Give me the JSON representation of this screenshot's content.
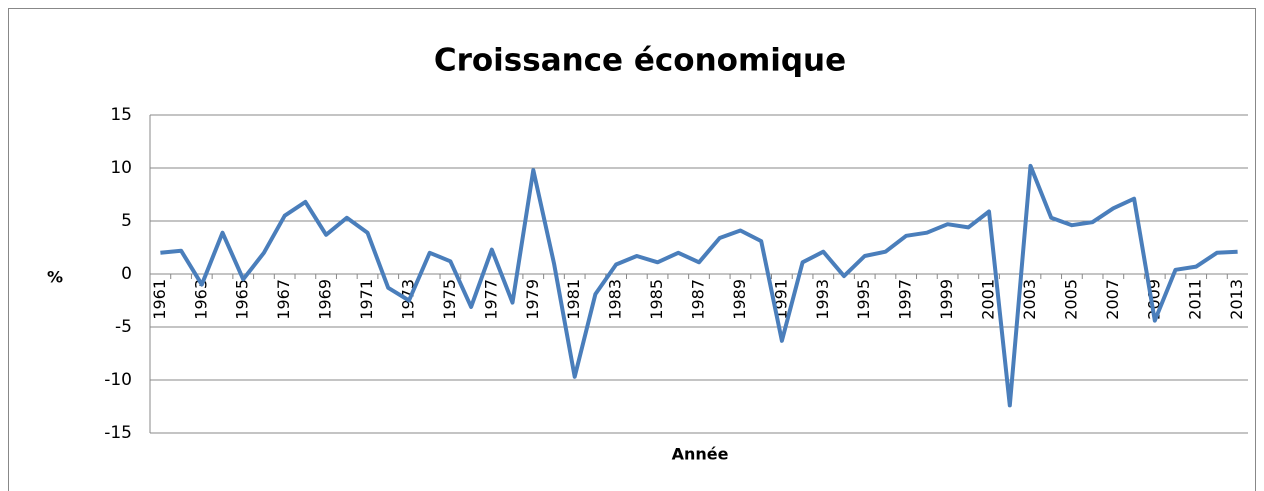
{
  "chart_data": {
    "type": "line",
    "title": "Croissance économique",
    "x_label": "Année",
    "y_label": "%",
    "categories": [
      "1961",
      null,
      "1963",
      null,
      "1965",
      null,
      "1967",
      null,
      "1969",
      null,
      "1971",
      null,
      "1973",
      null,
      "1975",
      null,
      "1977",
      null,
      "1979",
      null,
      "1981",
      null,
      "1983",
      null,
      "1985",
      null,
      "1987",
      null,
      "1989",
      null,
      "1991",
      null,
      "1993",
      null,
      "1995",
      null,
      "1997",
      null,
      "1999",
      null,
      "2001",
      null,
      "2003",
      null,
      "2005",
      null,
      "2007",
      null,
      "2009",
      null,
      "2011",
      null,
      "2013"
    ],
    "values": [
      2,
      2.2,
      -1,
      3.9,
      -0.5,
      2,
      5.5,
      6.8,
      3.7,
      5.3,
      3.9,
      -1.3,
      -2.5,
      2,
      1.2,
      -3.1,
      2.3,
      -2.7,
      9.8,
      1,
      -9.7,
      -1.9,
      0.9,
      1.7,
      1.1,
      2,
      1.1,
      3.4,
      4.1,
      3.1,
      -6.3,
      1.1,
      2.1,
      -0.2,
      1.7,
      2.1,
      3.6,
      3.9,
      4.7,
      4.4,
      5.9,
      -12.4,
      10.2,
      5.3,
      4.6,
      4.9,
      6.2,
      7.1,
      -4.4,
      0.4,
      0.7,
      2,
      2.1
    ],
    "color": "#4a7ebb",
    "ylim": [
      -15,
      15
    ],
    "yticks": [
      -15,
      -10,
      -5,
      0,
      5,
      10,
      15
    ],
    "grid": true
  }
}
